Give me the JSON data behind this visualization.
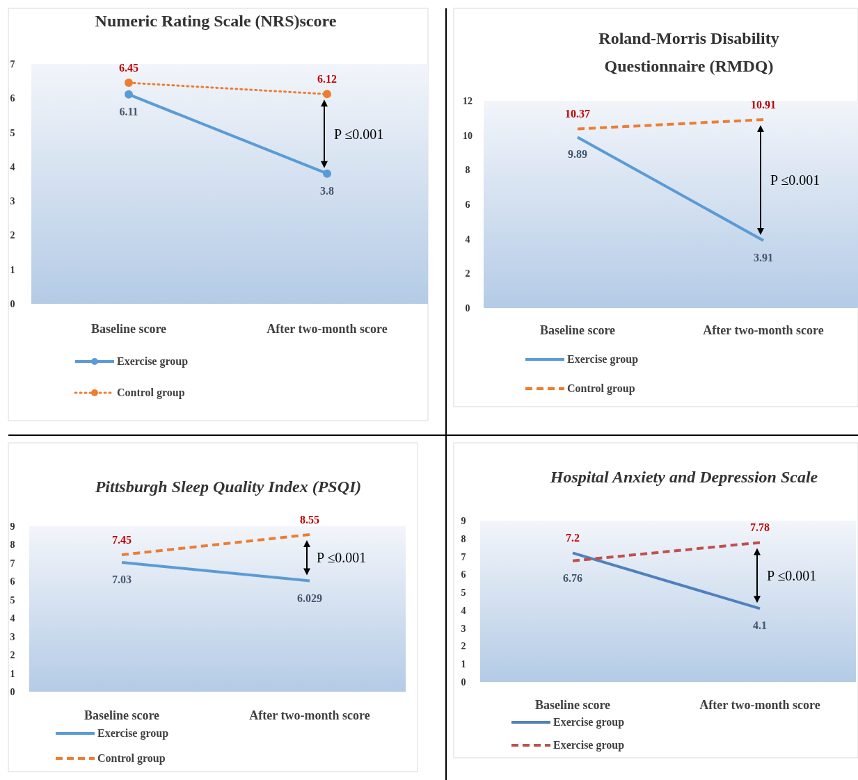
{
  "chart_data": [
    {
      "type": "line",
      "title": "Numeric Rating Scale (NRS)score",
      "categories": [
        "Baseline score",
        "After two-month score"
      ],
      "series": [
        {
          "name": "Exercise group",
          "color": "#5b9bd5",
          "values": [
            6.11,
            3.8
          ],
          "line_style": "solid"
        },
        {
          "name": "Control group",
          "color": "#ed7d31",
          "values": [
            6.45,
            6.12
          ],
          "line_style": "dotted"
        }
      ],
      "ylim": [
        0,
        7
      ],
      "yticks": [
        0,
        1,
        2,
        3,
        4,
        5,
        6,
        7
      ],
      "marker": "circle",
      "data_labels": true,
      "legend": "bottom",
      "annotations": [
        "P ≤0.001"
      ]
    },
    {
      "type": "line",
      "title": "Roland-Morris Disability Questionnaire (RMDQ)",
      "categories": [
        "Baseline score",
        "After two-month score"
      ],
      "series": [
        {
          "name": "Exercise group",
          "color": "#5b9bd5",
          "values": [
            9.89,
            3.91
          ],
          "line_style": "solid"
        },
        {
          "name": "Control group",
          "color": "#ed7d31",
          "values": [
            10.37,
            10.91
          ],
          "line_style": "dashed"
        }
      ],
      "ylim": [
        0,
        12
      ],
      "yticks": [
        0,
        2,
        4,
        6,
        8,
        10,
        12
      ],
      "data_labels": true,
      "legend": "bottom",
      "annotations": [
        "P ≤0.001"
      ]
    },
    {
      "type": "line",
      "title": "Pittsburgh Sleep Quality Index (PSQI)",
      "categories": [
        "Baseline score",
        "After two-month score"
      ],
      "series": [
        {
          "name": "Exercise group",
          "color": "#5b9bd5",
          "values": [
            7.03,
            6.029
          ],
          "line_style": "solid"
        },
        {
          "name": "Control group",
          "color": "#ed7d31",
          "values": [
            7.45,
            8.55
          ],
          "line_style": "dashed"
        }
      ],
      "ylim": [
        0,
        9
      ],
      "yticks": [
        0,
        1,
        2,
        3,
        4,
        5,
        6,
        7,
        8,
        9
      ],
      "data_labels": true,
      "legend": "bottom",
      "annotations": [
        "P ≤0.001"
      ]
    },
    {
      "type": "line",
      "title": "Hospital Anxiety and Depression Scale",
      "categories": [
        "Baseline score",
        "After two-month score"
      ],
      "series": [
        {
          "name": "Exercise group",
          "color": "#4f81bd",
          "values": [
            7.2,
            4.1
          ],
          "line_style": "solid"
        },
        {
          "name": "Exercise group",
          "color": "#c0504d",
          "values": [
            6.76,
            7.78
          ],
          "line_style": "dashed"
        }
      ],
      "ylim": [
        0,
        9
      ],
      "yticks": [
        0,
        1,
        2,
        3,
        4,
        5,
        6,
        7,
        8,
        9
      ],
      "data_labels": true,
      "legend": "bottom",
      "annotations": [
        "P ≤0.001"
      ]
    }
  ]
}
